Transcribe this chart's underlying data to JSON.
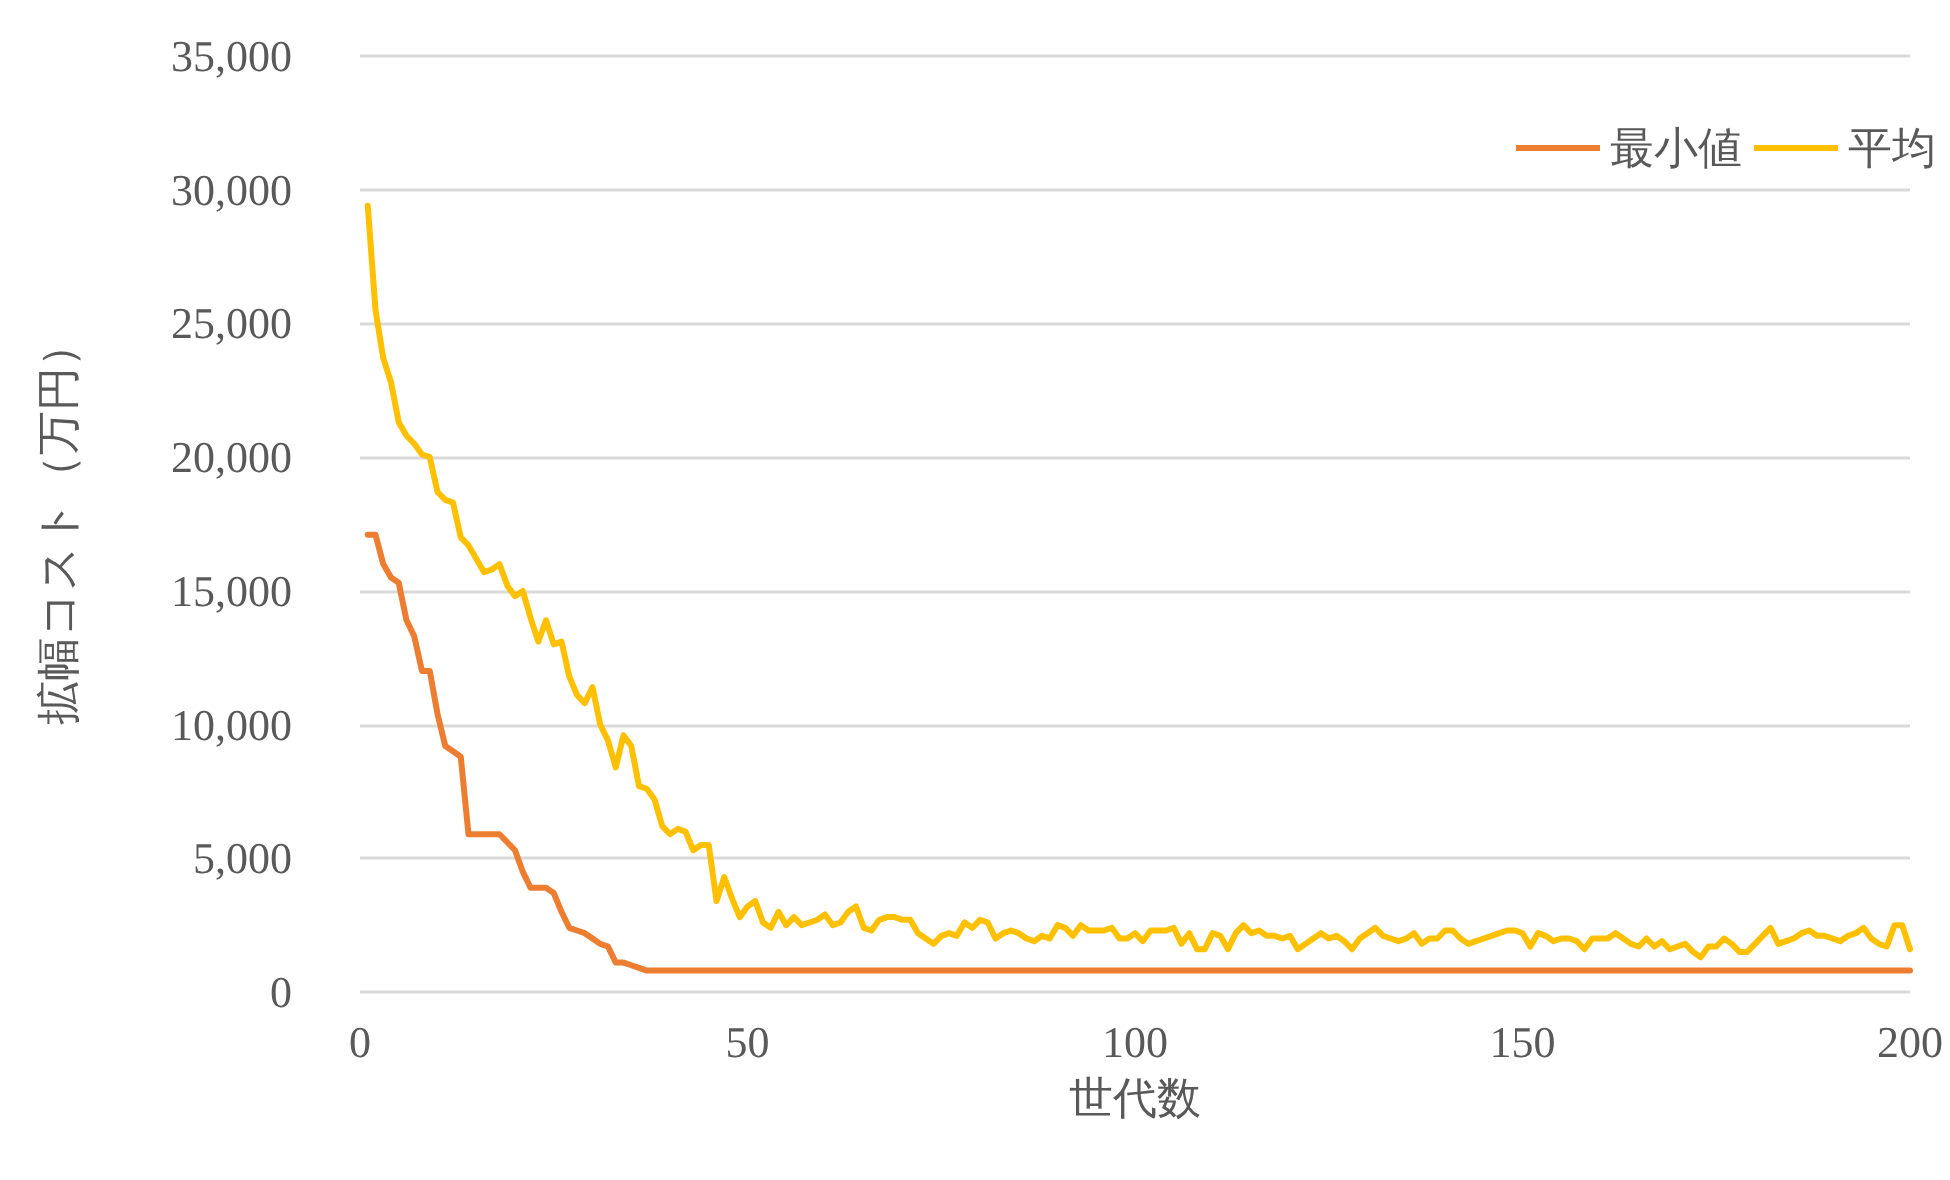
{
  "chart_data": {
    "type": "line",
    "xlabel": "世代数",
    "ylabel": "拡幅コスト（万円）",
    "x": [
      1,
      2,
      3,
      4,
      5,
      6,
      7,
      8,
      9,
      10,
      11,
      12,
      13,
      14,
      15,
      16,
      17,
      18,
      19,
      20,
      21,
      22,
      23,
      24,
      25,
      26,
      27,
      28,
      29,
      30,
      31,
      32,
      33,
      34,
      35,
      36,
      37,
      38,
      39,
      40,
      41,
      42,
      43,
      44,
      45,
      46,
      47,
      48,
      49,
      50,
      51,
      52,
      53,
      54,
      55,
      56,
      57,
      58,
      59,
      60,
      61,
      62,
      63,
      64,
      65,
      66,
      67,
      68,
      69,
      70,
      71,
      72,
      73,
      74,
      75,
      76,
      77,
      78,
      79,
      80,
      81,
      82,
      83,
      84,
      85,
      86,
      87,
      88,
      89,
      90,
      91,
      92,
      93,
      94,
      95,
      96,
      97,
      98,
      99,
      100,
      101,
      102,
      103,
      104,
      105,
      106,
      107,
      108,
      109,
      110,
      111,
      112,
      113,
      114,
      115,
      116,
      117,
      118,
      119,
      120,
      121,
      122,
      123,
      124,
      125,
      126,
      127,
      128,
      129,
      130,
      131,
      132,
      133,
      134,
      135,
      136,
      137,
      138,
      139,
      140,
      141,
      142,
      143,
      144,
      145,
      146,
      147,
      148,
      149,
      150,
      151,
      152,
      153,
      154,
      155,
      156,
      157,
      158,
      159,
      160,
      161,
      162,
      163,
      164,
      165,
      166,
      167,
      168,
      169,
      170,
      171,
      172,
      173,
      174,
      175,
      176,
      177,
      178,
      179,
      180,
      181,
      182,
      183,
      184,
      185,
      186,
      187,
      188,
      189,
      190,
      191,
      192,
      193,
      194,
      195,
      196,
      197,
      198,
      199,
      200
    ],
    "series": [
      {
        "name": "最小値",
        "color": "#ed7d31",
        "x": [
          1,
          2,
          3,
          4,
          5,
          6,
          7,
          8,
          9,
          10,
          11,
          12,
          13,
          14,
          15,
          16,
          17,
          18,
          19,
          20,
          21,
          22,
          23,
          24,
          25,
          26,
          27,
          28,
          29,
          30,
          31,
          32,
          33,
          34,
          35,
          36,
          37,
          200
        ],
        "values": [
          17100,
          17100,
          16000,
          15500,
          15300,
          13900,
          13300,
          12000,
          12000,
          10400,
          9200,
          9000,
          8800,
          5900,
          5900,
          5900,
          5900,
          5900,
          5600,
          5300,
          4500,
          3900,
          3900,
          3900,
          3700,
          3000,
          2400,
          2300,
          2200,
          2000,
          1800,
          1700,
          1100,
          1100,
          1000,
          900,
          800,
          800
        ]
      },
      {
        "name": "平均",
        "color": "#ffc000",
        "values": [
          29400,
          25500,
          23700,
          22800,
          21300,
          20800,
          20500,
          20100,
          20000,
          18700,
          18400,
          18300,
          17000,
          16700,
          16200,
          15700,
          15800,
          16000,
          15200,
          14800,
          15000,
          14000,
          13100,
          13900,
          13000,
          13100,
          11800,
          11100,
          10800,
          11400,
          10000,
          9400,
          8400,
          9600,
          9200,
          7700,
          7600,
          7200,
          6200,
          5900,
          6100,
          6000,
          5300,
          5500,
          5500,
          3400,
          4300,
          3500,
          2800,
          3200,
          3400,
          2600,
          2400,
          3000,
          2500,
          2800,
          2500,
          2600,
          2700,
          2900,
          2500,
          2600,
          3000,
          3200,
          2400,
          2300,
          2700,
          2800,
          2800,
          2700,
          2700,
          2200,
          2000,
          1800,
          2100,
          2200,
          2100,
          2600,
          2400,
          2700,
          2600,
          2000,
          2200,
          2300,
          2200,
          2000,
          1900,
          2100,
          2000,
          2500,
          2400,
          2100,
          2500,
          2300,
          2300,
          2300,
          2400,
          2000,
          2000,
          2200,
          1900,
          2300,
          2300,
          2300,
          2400,
          1800,
          2200,
          1600,
          1600,
          2200,
          2100,
          1600,
          2200,
          2500,
          2200,
          2300,
          2100,
          2100,
          2000,
          2100,
          1600,
          1800,
          2000,
          2200,
          2000,
          2100,
          1900,
          1600,
          2000,
          2200,
          2400,
          2100,
          2000,
          1900,
          2000,
          2200,
          1800,
          2000,
          2000,
          2300,
          2300,
          2000,
          1800,
          1900,
          2000,
          2100,
          2200,
          2300,
          2300,
          2200,
          1700,
          2200,
          2100,
          1900,
          2000,
          2000,
          1900,
          1600,
          2000,
          2000,
          2000,
          2200,
          2000,
          1800,
          1700,
          2000,
          1700,
          1900,
          1600,
          1700,
          1800,
          1500,
          1300,
          1700,
          1700,
          2000,
          1800,
          1500,
          1500,
          1800,
          2100,
          2400,
          1800,
          1900,
          2000,
          2200,
          2300,
          2100,
          2100,
          2000,
          1900,
          2100,
          2200,
          2400,
          2000,
          1800,
          1700,
          2500,
          2500,
          1600
        ]
      }
    ],
    "xlim": [
      0,
      200
    ],
    "xticks": [
      0,
      50,
      100,
      150,
      200
    ],
    "ylim": [
      0,
      35000
    ],
    "yticks": [
      {
        "value": 0,
        "label": "0"
      },
      {
        "value": 5000,
        "label": "5,000"
      },
      {
        "value": 10000,
        "label": "10,000"
      },
      {
        "value": 15000,
        "label": "15,000"
      },
      {
        "value": 20000,
        "label": "20,000"
      },
      {
        "value": 25000,
        "label": "25,000"
      },
      {
        "value": 30000,
        "label": "30,000"
      },
      {
        "value": 35000,
        "label": "35,000"
      }
    ],
    "grid": "y",
    "legend": "top right",
    "marker": "none",
    "line_style": "solid"
  }
}
